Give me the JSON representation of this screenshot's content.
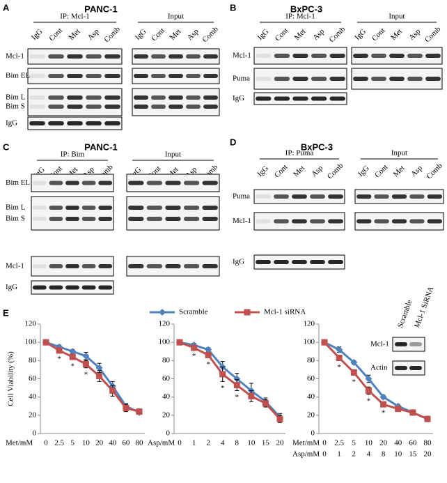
{
  "blots": [
    {
      "letter": "A",
      "cell_line": "PANC-1",
      "ip": {
        "title": "IP: Mcl-1",
        "lanes": [
          "IgG",
          "Cont",
          "Met",
          "Asp",
          "Comb"
        ]
      },
      "input": {
        "title": "Input",
        "lanes": [
          "IgG",
          "Cont",
          "Met",
          "Asp",
          "Comb"
        ]
      },
      "rows": [
        [
          "Mcl-1"
        ],
        [
          "Bim EL"
        ],
        [
          "Bim L",
          "Bim S"
        ],
        [
          "IgG"
        ]
      ]
    },
    {
      "letter": "B",
      "cell_line": "BxPC-3",
      "ip": {
        "title": "IP: Mcl-1",
        "lanes": [
          "IgG",
          "Cont",
          "Met",
          "Asp",
          "Comb"
        ]
      },
      "input": {
        "title": "Input",
        "lanes": [
          "IgG",
          "Cont",
          "Met",
          "Asp",
          "Comb"
        ]
      },
      "rows": [
        [
          "Mcl-1"
        ],
        [
          "Puma"
        ],
        [
          "IgG"
        ]
      ]
    },
    {
      "letter": "C",
      "cell_line": "PANC-1",
      "ip": {
        "title": "IP: Bim",
        "lanes": [
          "IgG",
          "Cont",
          "Met",
          "Asp",
          "Comb"
        ]
      },
      "input": {
        "title": "Input",
        "lanes": [
          "IgG",
          "Cont",
          "Met",
          "Asp",
          "Comb"
        ]
      },
      "rows": [
        [
          "Bim EL"
        ],
        [
          "Bim L",
          "Bim S"
        ],
        [
          "Mcl-1"
        ],
        [
          "IgG"
        ]
      ]
    },
    {
      "letter": "D",
      "cell_line": "BxPC-3",
      "ip": {
        "title": "IP: Puma",
        "lanes": [
          "IgG",
          "Cont",
          "Met",
          "Asp",
          "Comb"
        ]
      },
      "input": {
        "title": "Input",
        "lanes": [
          "IgG",
          "Cont",
          "Met",
          "Asp",
          "Comb"
        ]
      },
      "rows": [
        [
          "Puma"
        ],
        [
          "Mcl-1"
        ],
        [
          "IgG"
        ]
      ]
    }
  ],
  "e_label": "E",
  "e_inset": {
    "columns": [
      "Scramble",
      "Mcl-1 SiRNA"
    ],
    "rows": [
      "Mcl-1",
      "Actin"
    ]
  },
  "chart_data": [
    {
      "type": "line",
      "ylabel": "Cell Viability (%)",
      "xlabel": "Met/mM",
      "categories": [
        "0",
        "2.5",
        "5",
        "10",
        "20",
        "40",
        "60",
        "80"
      ],
      "ylim": [
        0,
        120
      ],
      "yticks": [
        0,
        20,
        40,
        60,
        80,
        100,
        120
      ],
      "series": [
        {
          "name": "Scramble",
          "color": "#4f81bd",
          "values": [
            100,
            95,
            90,
            85,
            72,
            52,
            30,
            23
          ],
          "errors": [
            1,
            2,
            2,
            4,
            5,
            5,
            3,
            2
          ]
        },
        {
          "name": "Mcl-1  siRNA",
          "color": "#c0504d",
          "values": [
            100,
            91,
            84,
            76,
            63,
            47,
            28,
            24
          ],
          "errors": [
            1,
            2,
            3,
            4,
            6,
            6,
            4,
            3
          ]
        }
      ],
      "star_labels": [
        null,
        "*",
        "*",
        "*",
        null,
        null,
        null,
        null
      ]
    },
    {
      "type": "line",
      "xlabel": "Asp/mM",
      "categories": [
        "0",
        "1",
        "2",
        "4",
        "8",
        "10",
        "15",
        "20"
      ],
      "ylim": [
        0,
        120
      ],
      "yticks": [
        0,
        20,
        40,
        60,
        80,
        100,
        120
      ],
      "series": [
        {
          "color": "#4f81bd",
          "values": [
            100,
            97,
            92,
            73,
            60,
            47,
            35,
            18
          ],
          "errors": [
            1,
            2,
            2,
            6,
            6,
            8,
            4,
            4
          ]
        },
        {
          "color": "#c0504d",
          "values": [
            100,
            94,
            86,
            65,
            53,
            41,
            33,
            16
          ],
          "errors": [
            1,
            2,
            3,
            8,
            6,
            6,
            4,
            4
          ]
        }
      ],
      "star_labels": [
        null,
        "*",
        "*",
        "*",
        "*",
        null,
        null,
        null
      ]
    },
    {
      "type": "line",
      "xlabel": "Met/mM",
      "xlabel2": "Asp/mM",
      "categories": [
        "0",
        "2.5",
        "5",
        "10",
        "20",
        "40",
        "60",
        "80"
      ],
      "categories2": [
        "0",
        "1",
        "2",
        "4",
        "8",
        "10",
        "15",
        "20"
      ],
      "ylim": [
        0,
        120
      ],
      "yticks": [
        0,
        20,
        40,
        60,
        80,
        100,
        120
      ],
      "series": [
        {
          "color": "#4f81bd",
          "values": [
            100,
            92,
            78,
            60,
            40,
            30,
            23,
            16
          ],
          "errors": [
            1,
            3,
            2,
            4,
            2,
            2,
            2,
            2
          ]
        },
        {
          "color": "#c0504d",
          "values": [
            100,
            83,
            67,
            47,
            32,
            27,
            23,
            16
          ],
          "errors": [
            1,
            3,
            3,
            4,
            2,
            2,
            2,
            2
          ]
        }
      ],
      "star_labels": [
        null,
        "*",
        "*",
        "*",
        "*",
        null,
        null,
        null
      ]
    }
  ]
}
